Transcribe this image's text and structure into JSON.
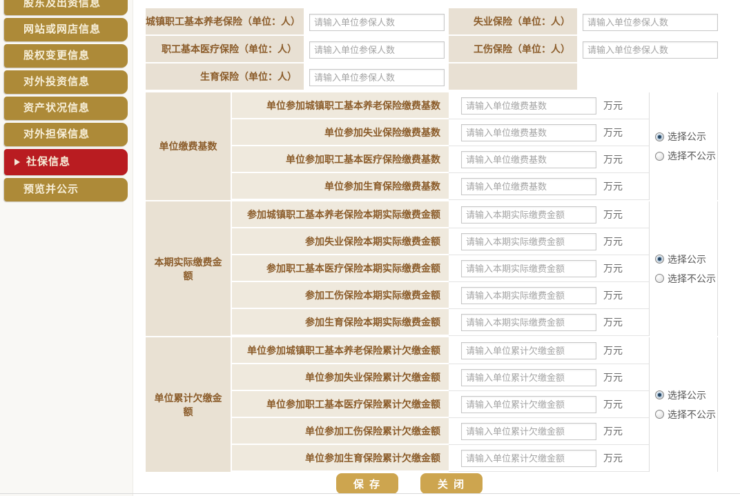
{
  "sidebar": {
    "items": [
      {
        "label": "股东及出资信息"
      },
      {
        "label": "网站或网店信息"
      },
      {
        "label": "股权变更信息"
      },
      {
        "label": "对外投资信息"
      },
      {
        "label": "资产状况信息"
      },
      {
        "label": "对外担保信息"
      },
      {
        "label": "社保信息",
        "active": true
      },
      {
        "label": "预览并公示"
      }
    ]
  },
  "top_section": {
    "input_placeholder": "请输入单位参保人数",
    "fields": [
      {
        "label": "城镇职工基本养老保险（单位：人）"
      },
      {
        "label": "失业保险（单位：人）"
      },
      {
        "label": "职工基本医疗保险（单位：人）"
      },
      {
        "label": "工伤保险（单位：人）"
      },
      {
        "label": "生育保险（单位：人）"
      }
    ]
  },
  "sections": [
    {
      "group_label": "单位缴费基数",
      "input_placeholder": "请输入单位缴费基数",
      "unit": "万元",
      "rows": [
        "单位参加城镇职工基本养老保险缴费基数",
        "单位参加失业保险缴费基数",
        "单位参加职工基本医疗保险缴费基数",
        "单位参加生育保险缴费基数"
      ],
      "radio": {
        "public": "选择公示",
        "private": "选择不公示",
        "selected": "选择公示"
      }
    },
    {
      "group_label": "本期实际缴费金额",
      "input_placeholder": "请输入本期实际缴费金额",
      "unit": "万元",
      "rows": [
        "参加城镇职工基本养老保险本期实际缴费金额",
        "参加失业保险本期实际缴费金额",
        "参加职工基本医疗保险本期实际缴费金额",
        "参加工伤保险本期实际缴费金额",
        "参加生育保险本期实际缴费金额"
      ],
      "radio": {
        "public": "选择公示",
        "private": "选择不公示",
        "selected": "选择公示"
      }
    },
    {
      "group_label": "单位累计欠缴金额",
      "input_placeholder": "请输入单位累计欠缴金额",
      "unit": "万元",
      "rows": [
        "单位参加城镇职工基本养老保险累计欠缴金额",
        "单位参加失业保险累计欠缴金额",
        "单位参加职工基本医疗保险累计欠缴金额",
        "单位参加工伤保险累计欠缴金额",
        "单位参加生育保险累计欠缴金额"
      ],
      "radio": {
        "public": "选择公示",
        "private": "选择不公示",
        "selected": "选择公示"
      }
    }
  ],
  "buttons": {
    "save": "保 存",
    "close": "关 闭"
  },
  "colors": {
    "sidebar_gold": "#ad8a38",
    "active_red": "#b91c21",
    "label_brown": "#8b5c2a",
    "button_gold": "#cda54f",
    "radio_selected_dot": "#27445f"
  }
}
